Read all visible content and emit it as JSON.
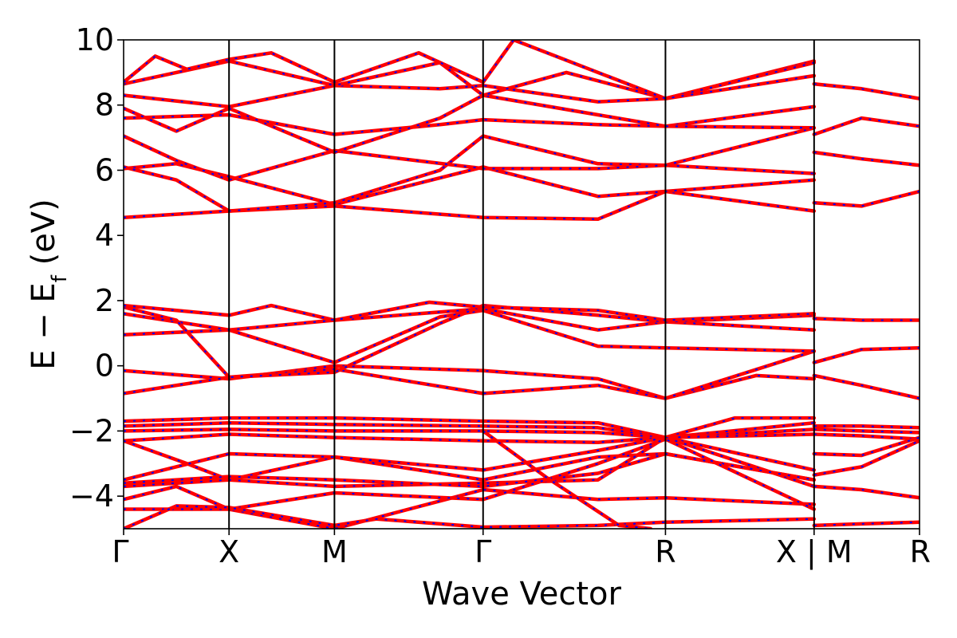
{
  "chart_data": {
    "type": "line",
    "xlabel": "Wave Vector",
    "ylabel": "E − E",
    "ylabel_sub": "f",
    "ylabel_unit": " (eV)",
    "ylim": [
      -5,
      10
    ],
    "yticks": [
      10,
      8,
      6,
      4,
      2,
      0,
      -2,
      -4
    ],
    "ytick_labels": [
      "10",
      "8",
      "6",
      "4",
      "2",
      "0",
      "−2",
      "−4"
    ],
    "x_segments": [
      {
        "label": "Γ",
        "pos": 0.0
      },
      {
        "label": "X",
        "pos": 1.0
      },
      {
        "label": "M",
        "pos": 2.0
      },
      {
        "label": "Γ",
        "pos": 3.41
      },
      {
        "label": "R",
        "pos": 5.14
      },
      {
        "label": "X | M",
        "pos": 6.55
      },
      {
        "label": "R",
        "pos": 7.55
      }
    ],
    "xlim": [
      0,
      7.55
    ],
    "grid": false,
    "line_colors": {
      "primary": "#ff0000",
      "dashed_overlay": "#0000ff"
    },
    "bands": [
      [
        [
          0.0,
          4.55
        ],
        [
          1.0,
          4.75
        ],
        [
          2.0,
          4.9
        ],
        [
          3.41,
          4.55
        ],
        [
          4.5,
          4.5
        ],
        [
          5.14,
          5.35
        ],
        [
          6.55,
          4.75
        ]
      ],
      [
        [
          0.0,
          6.05
        ],
        [
          0.5,
          6.2
        ],
        [
          1.0,
          5.8
        ],
        [
          2.0,
          4.95
        ],
        [
          3.41,
          6.1
        ],
        [
          4.5,
          5.2
        ],
        [
          5.14,
          5.35
        ],
        [
          6.55,
          5.7
        ]
      ],
      [
        [
          0.0,
          6.1
        ],
        [
          0.5,
          5.7
        ],
        [
          1.0,
          4.75
        ],
        [
          2.0,
          5.0
        ],
        [
          3.0,
          6.0
        ],
        [
          3.41,
          7.05
        ],
        [
          4.5,
          6.2
        ],
        [
          5.14,
          6.15
        ],
        [
          6.55,
          5.9
        ]
      ],
      [
        [
          0.0,
          7.05
        ],
        [
          0.5,
          6.3
        ],
        [
          1.0,
          5.7
        ],
        [
          2.0,
          6.6
        ],
        [
          3.41,
          6.05
        ],
        [
          4.5,
          6.05
        ],
        [
          5.14,
          6.15
        ],
        [
          6.55,
          7.3
        ]
      ],
      [
        [
          0.0,
          7.6
        ],
        [
          1.0,
          7.7
        ],
        [
          2.0,
          7.1
        ],
        [
          3.0,
          7.4
        ],
        [
          3.41,
          7.55
        ],
        [
          4.5,
          7.4
        ],
        [
          5.14,
          7.35
        ],
        [
          6.55,
          7.95
        ]
      ],
      [
        [
          0.0,
          7.9
        ],
        [
          0.5,
          7.2
        ],
        [
          1.0,
          7.9
        ],
        [
          2.0,
          6.55
        ],
        [
          3.0,
          7.6
        ],
        [
          3.41,
          8.3
        ],
        [
          4.5,
          7.7
        ],
        [
          5.14,
          7.35
        ],
        [
          6.55,
          7.3
        ]
      ],
      [
        [
          0.0,
          8.3
        ],
        [
          1.0,
          7.95
        ],
        [
          2.0,
          8.6
        ],
        [
          3.0,
          8.5
        ],
        [
          3.41,
          8.6
        ],
        [
          4.5,
          8.1
        ],
        [
          5.14,
          8.2
        ],
        [
          6.55,
          9.35
        ]
      ],
      [
        [
          0.0,
          8.65
        ],
        [
          0.5,
          9.0
        ],
        [
          1.0,
          9.35
        ],
        [
          2.0,
          8.6
        ],
        [
          3.0,
          9.3
        ],
        [
          3.41,
          8.3
        ],
        [
          4.2,
          9.0
        ],
        [
          5.14,
          8.2
        ],
        [
          6.55,
          9.3
        ]
      ],
      [
        [
          0.0,
          8.7
        ],
        [
          0.3,
          9.5
        ],
        [
          0.6,
          9.1
        ],
        [
          1.0,
          9.4
        ],
        [
          1.4,
          9.6
        ],
        [
          2.0,
          8.7
        ],
        [
          2.8,
          9.6
        ],
        [
          3.41,
          8.7
        ],
        [
          3.7,
          10.0
        ],
        [
          5.14,
          8.2
        ],
        [
          6.55,
          8.9
        ]
      ],
      [
        [
          0.0,
          -0.15
        ],
        [
          1.0,
          -0.4
        ],
        [
          2.0,
          0.0
        ],
        [
          3.41,
          -0.15
        ],
        [
          4.5,
          -0.4
        ],
        [
          5.14,
          -1.0
        ],
        [
          6.0,
          -0.3
        ],
        [
          6.55,
          -0.4
        ]
      ],
      [
        [
          0.0,
          -0.85
        ],
        [
          1.0,
          -0.35
        ],
        [
          2.0,
          -0.1
        ],
        [
          3.41,
          -0.85
        ],
        [
          4.5,
          -0.6
        ],
        [
          5.14,
          -1.0
        ],
        [
          6.55,
          0.45
        ]
      ],
      [
        [
          0.0,
          0.95
        ],
        [
          1.0,
          1.1
        ],
        [
          2.0,
          0.1
        ],
        [
          3.0,
          1.5
        ],
        [
          3.41,
          1.7
        ],
        [
          4.5,
          0.6
        ],
        [
          5.14,
          0.55
        ],
        [
          6.55,
          0.45
        ]
      ],
      [
        [
          0.0,
          1.6
        ],
        [
          1.0,
          1.1
        ],
        [
          2.0,
          1.4
        ],
        [
          3.41,
          1.75
        ],
        [
          4.5,
          1.1
        ],
        [
          5.14,
          1.35
        ],
        [
          6.55,
          1.1
        ]
      ],
      [
        [
          0.0,
          1.8
        ],
        [
          0.5,
          1.4
        ],
        [
          1.0,
          -0.35
        ],
        [
          2.0,
          -0.2
        ],
        [
          3.0,
          1.3
        ],
        [
          3.41,
          1.85
        ],
        [
          4.5,
          1.55
        ],
        [
          5.14,
          1.35
        ],
        [
          6.55,
          1.55
        ]
      ],
      [
        [
          0.0,
          1.85
        ],
        [
          1.0,
          1.55
        ],
        [
          1.4,
          1.85
        ],
        [
          2.0,
          1.4
        ],
        [
          2.9,
          1.95
        ],
        [
          3.41,
          1.8
        ],
        [
          4.5,
          1.7
        ],
        [
          5.14,
          1.4
        ],
        [
          6.55,
          1.6
        ]
      ],
      [
        [
          0.0,
          -1.7
        ],
        [
          1.0,
          -1.6
        ],
        [
          2.0,
          -1.6
        ],
        [
          3.41,
          -1.7
        ],
        [
          4.5,
          -1.75
        ],
        [
          5.14,
          -2.2
        ],
        [
          5.8,
          -1.6
        ],
        [
          6.55,
          -1.6
        ]
      ],
      [
        [
          0.0,
          -1.85
        ],
        [
          1.0,
          -1.75
        ],
        [
          2.0,
          -1.8
        ],
        [
          3.41,
          -1.85
        ],
        [
          4.5,
          -1.9
        ],
        [
          5.14,
          -2.2
        ],
        [
          6.55,
          -1.75
        ]
      ],
      [
        [
          0.0,
          -2.0
        ],
        [
          1.0,
          -1.95
        ],
        [
          2.0,
          -2.0
        ],
        [
          3.41,
          -2.0
        ],
        [
          4.5,
          -2.05
        ],
        [
          5.14,
          -2.2
        ],
        [
          6.55,
          -1.95
        ]
      ],
      [
        [
          0.0,
          -2.3
        ],
        [
          1.0,
          -2.1
        ],
        [
          2.0,
          -2.2
        ],
        [
          3.41,
          -2.3
        ],
        [
          4.5,
          -2.35
        ],
        [
          5.14,
          -2.2
        ],
        [
          6.55,
          -2.1
        ]
      ],
      [
        [
          0.0,
          -2.3
        ],
        [
          0.6,
          -3.0
        ],
        [
          1.0,
          -3.5
        ],
        [
          2.0,
          -2.8
        ],
        [
          3.41,
          -3.5
        ],
        [
          4.5,
          -2.8
        ],
        [
          5.14,
          -2.7
        ],
        [
          6.55,
          -3.5
        ]
      ],
      [
        [
          0.0,
          -3.5
        ],
        [
          1.0,
          -2.7
        ],
        [
          2.0,
          -2.8
        ],
        [
          3.41,
          -3.2
        ],
        [
          4.5,
          -2.6
        ],
        [
          5.14,
          -2.2
        ],
        [
          6.55,
          -3.2
        ]
      ],
      [
        [
          0.0,
          -3.7
        ],
        [
          1.0,
          -3.5
        ],
        [
          2.0,
          -3.7
        ],
        [
          3.41,
          -3.6
        ],
        [
          4.5,
          -3.5
        ],
        [
          5.14,
          -2.2
        ],
        [
          6.55,
          -3.7
        ]
      ],
      [
        [
          0.0,
          -3.6
        ],
        [
          1.0,
          -3.4
        ],
        [
          2.0,
          -3.5
        ],
        [
          3.41,
          -3.7
        ],
        [
          4.5,
          -3.3
        ],
        [
          5.14,
          -2.7
        ],
        [
          6.55,
          -3.5
        ]
      ],
      [
        [
          0.0,
          -4.1
        ],
        [
          0.5,
          -3.7
        ],
        [
          1.0,
          -4.4
        ],
        [
          2.0,
          -5.0
        ],
        [
          3.41,
          -3.8
        ],
        [
          4.5,
          -4.1
        ],
        [
          5.14,
          -4.05
        ],
        [
          6.55,
          -4.25
        ]
      ],
      [
        [
          0.0,
          -4.4
        ],
        [
          1.0,
          -4.4
        ],
        [
          2.0,
          -3.9
        ],
        [
          3.41,
          -4.1
        ],
        [
          4.5,
          -3.0
        ],
        [
          5.14,
          -2.25
        ],
        [
          6.55,
          -4.4
        ]
      ],
      [
        [
          0.0,
          -5.0
        ],
        [
          0.5,
          -4.3
        ],
        [
          1.0,
          -4.35
        ],
        [
          2.0,
          -4.9
        ],
        [
          2.4,
          -4.7
        ],
        [
          3.41,
          -4.95
        ],
        [
          4.5,
          -4.9
        ],
        [
          5.14,
          -4.8
        ],
        [
          6.55,
          -4.7
        ]
      ],
      [
        [
          3.41,
          -2.0
        ],
        [
          4.0,
          -3.4
        ],
        [
          4.7,
          -4.9
        ],
        [
          5.0,
          -5.0
        ]
      ],
      [
        [
          6.55,
          8.65
        ],
        [
          7.0,
          8.5
        ],
        [
          7.55,
          8.2
        ]
      ],
      [
        [
          6.55,
          7.1
        ],
        [
          7.0,
          7.6
        ],
        [
          7.55,
          7.35
        ]
      ],
      [
        [
          6.55,
          6.55
        ],
        [
          7.0,
          6.35
        ],
        [
          7.55,
          6.15
        ]
      ],
      [
        [
          6.55,
          5.0
        ],
        [
          7.0,
          4.9
        ],
        [
          7.55,
          5.35
        ]
      ],
      [
        [
          6.55,
          1.45
        ],
        [
          7.0,
          1.4
        ],
        [
          7.55,
          1.4
        ]
      ],
      [
        [
          6.55,
          0.1
        ],
        [
          7.0,
          0.5
        ],
        [
          7.55,
          0.55
        ]
      ],
      [
        [
          6.55,
          -0.3
        ],
        [
          7.0,
          -0.6
        ],
        [
          7.55,
          -1.0
        ]
      ],
      [
        [
          6.55,
          -1.85
        ],
        [
          7.0,
          -1.85
        ],
        [
          7.55,
          -1.9
        ]
      ],
      [
        [
          6.55,
          -1.95
        ],
        [
          7.0,
          -2.0
        ],
        [
          7.55,
          -2.05
        ]
      ],
      [
        [
          6.55,
          -2.1
        ],
        [
          7.0,
          -2.15
        ],
        [
          7.55,
          -2.25
        ]
      ],
      [
        [
          6.55,
          -2.7
        ],
        [
          7.0,
          -2.75
        ],
        [
          7.55,
          -2.2
        ]
      ],
      [
        [
          6.55,
          -3.35
        ],
        [
          7.0,
          -3.1
        ],
        [
          7.55,
          -2.3
        ]
      ],
      [
        [
          6.55,
          -3.7
        ],
        [
          7.0,
          -3.8
        ],
        [
          7.55,
          -4.05
        ]
      ],
      [
        [
          6.55,
          -4.9
        ],
        [
          7.0,
          -4.85
        ],
        [
          7.55,
          -4.8
        ]
      ]
    ]
  }
}
